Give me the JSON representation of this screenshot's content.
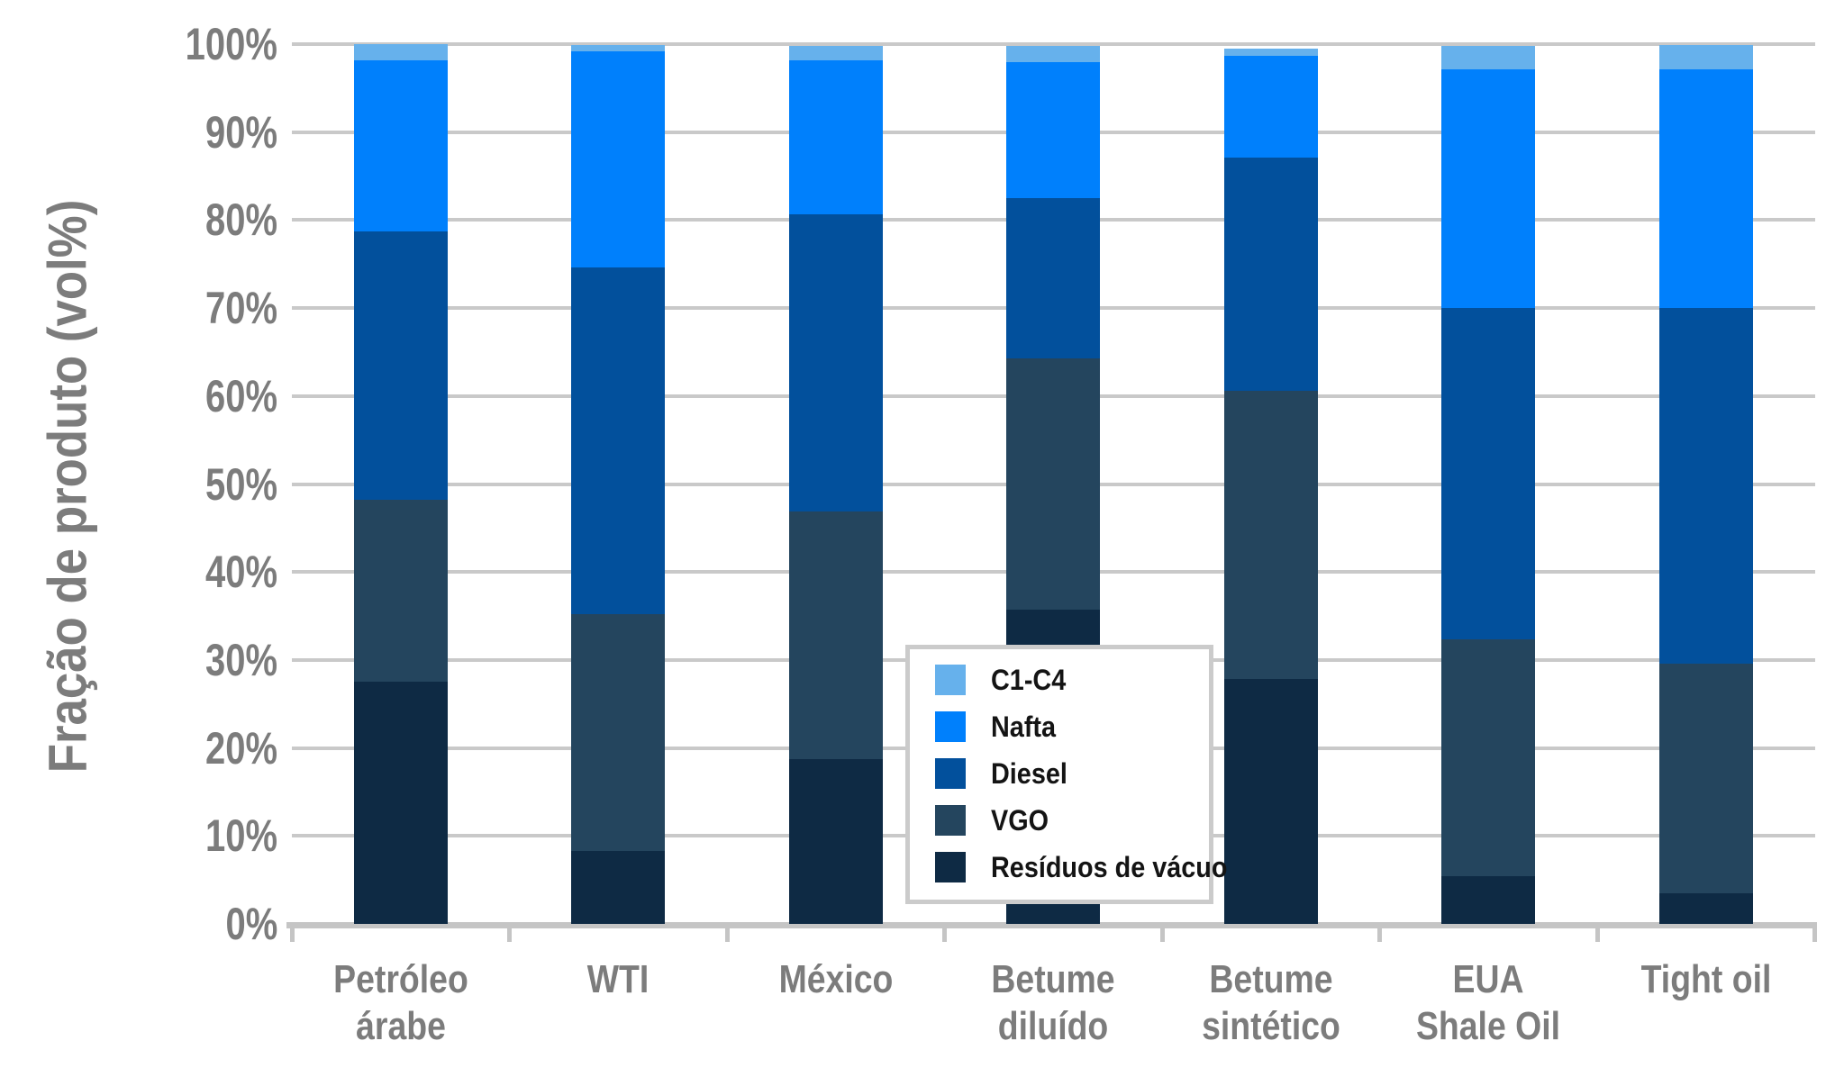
{
  "chart_data": {
    "type": "bar",
    "stacked": true,
    "title": "",
    "xlabel": "",
    "ylabel": "Fração de produto (vol%)",
    "ylim": [
      0,
      100
    ],
    "ytick_step": 10,
    "ytick_labels": [
      "0%",
      "10%",
      "20%",
      "30%",
      "40%",
      "50%",
      "60%",
      "70%",
      "80%",
      "90%",
      "100%"
    ],
    "grid": true,
    "categories": [
      {
        "label": "Petróleo árabe",
        "lines": [
          "Petróleo",
          "árabe"
        ]
      },
      {
        "label": "WTI",
        "lines": [
          "WTI"
        ]
      },
      {
        "label": "México",
        "lines": [
          "México"
        ]
      },
      {
        "label": "Betume diluído",
        "lines": [
          "Betume",
          "diluído"
        ]
      },
      {
        "label": "Betume sintético",
        "lines": [
          "Betume",
          "sintético"
        ]
      },
      {
        "label": "EUA Shale Oil",
        "lines": [
          "EUA",
          "Shale Oil"
        ]
      },
      {
        "label": "Tight oil",
        "lines": [
          "Tight oil"
        ]
      }
    ],
    "series": [
      {
        "name": "Resíduos de vácuo",
        "color": "#0E2A44",
        "values": [
          27.5,
          8.3,
          18.7,
          35.7,
          27.8,
          5.4,
          3.5
        ]
      },
      {
        "name": "VGO",
        "color": "#24455E",
        "values": [
          20.7,
          26.9,
          28.2,
          28.6,
          32.8,
          26.9,
          26.1
        ]
      },
      {
        "name": "Diesel",
        "color": "#02509C",
        "values": [
          30.5,
          39.4,
          33.8,
          18.2,
          26.5,
          37.7,
          40.4
        ]
      },
      {
        "name": "Nafta",
        "color": "#0080FC",
        "values": [
          19.5,
          24.6,
          17.5,
          15.5,
          11.6,
          27.1,
          27.1
        ]
      },
      {
        "name": "C1-C4",
        "color": "#66B1EC",
        "values": [
          1.8,
          0.7,
          1.6,
          1.8,
          0.8,
          2.7,
          2.8
        ]
      }
    ],
    "legend": {
      "position": "lower-center-right",
      "entries": [
        "C1-C4",
        "Nafta",
        "Diesel",
        "VGO",
        "Resíduos de vácuo"
      ]
    }
  },
  "ui": {
    "background": "#FFFFFF",
    "gridline_color": "#C9C9C9",
    "axis_color": "#C5C5C5",
    "tick_label_color": "#7C7C7C",
    "legend_border_color": "#CBCBCB",
    "legend_text_color": "#141414"
  }
}
